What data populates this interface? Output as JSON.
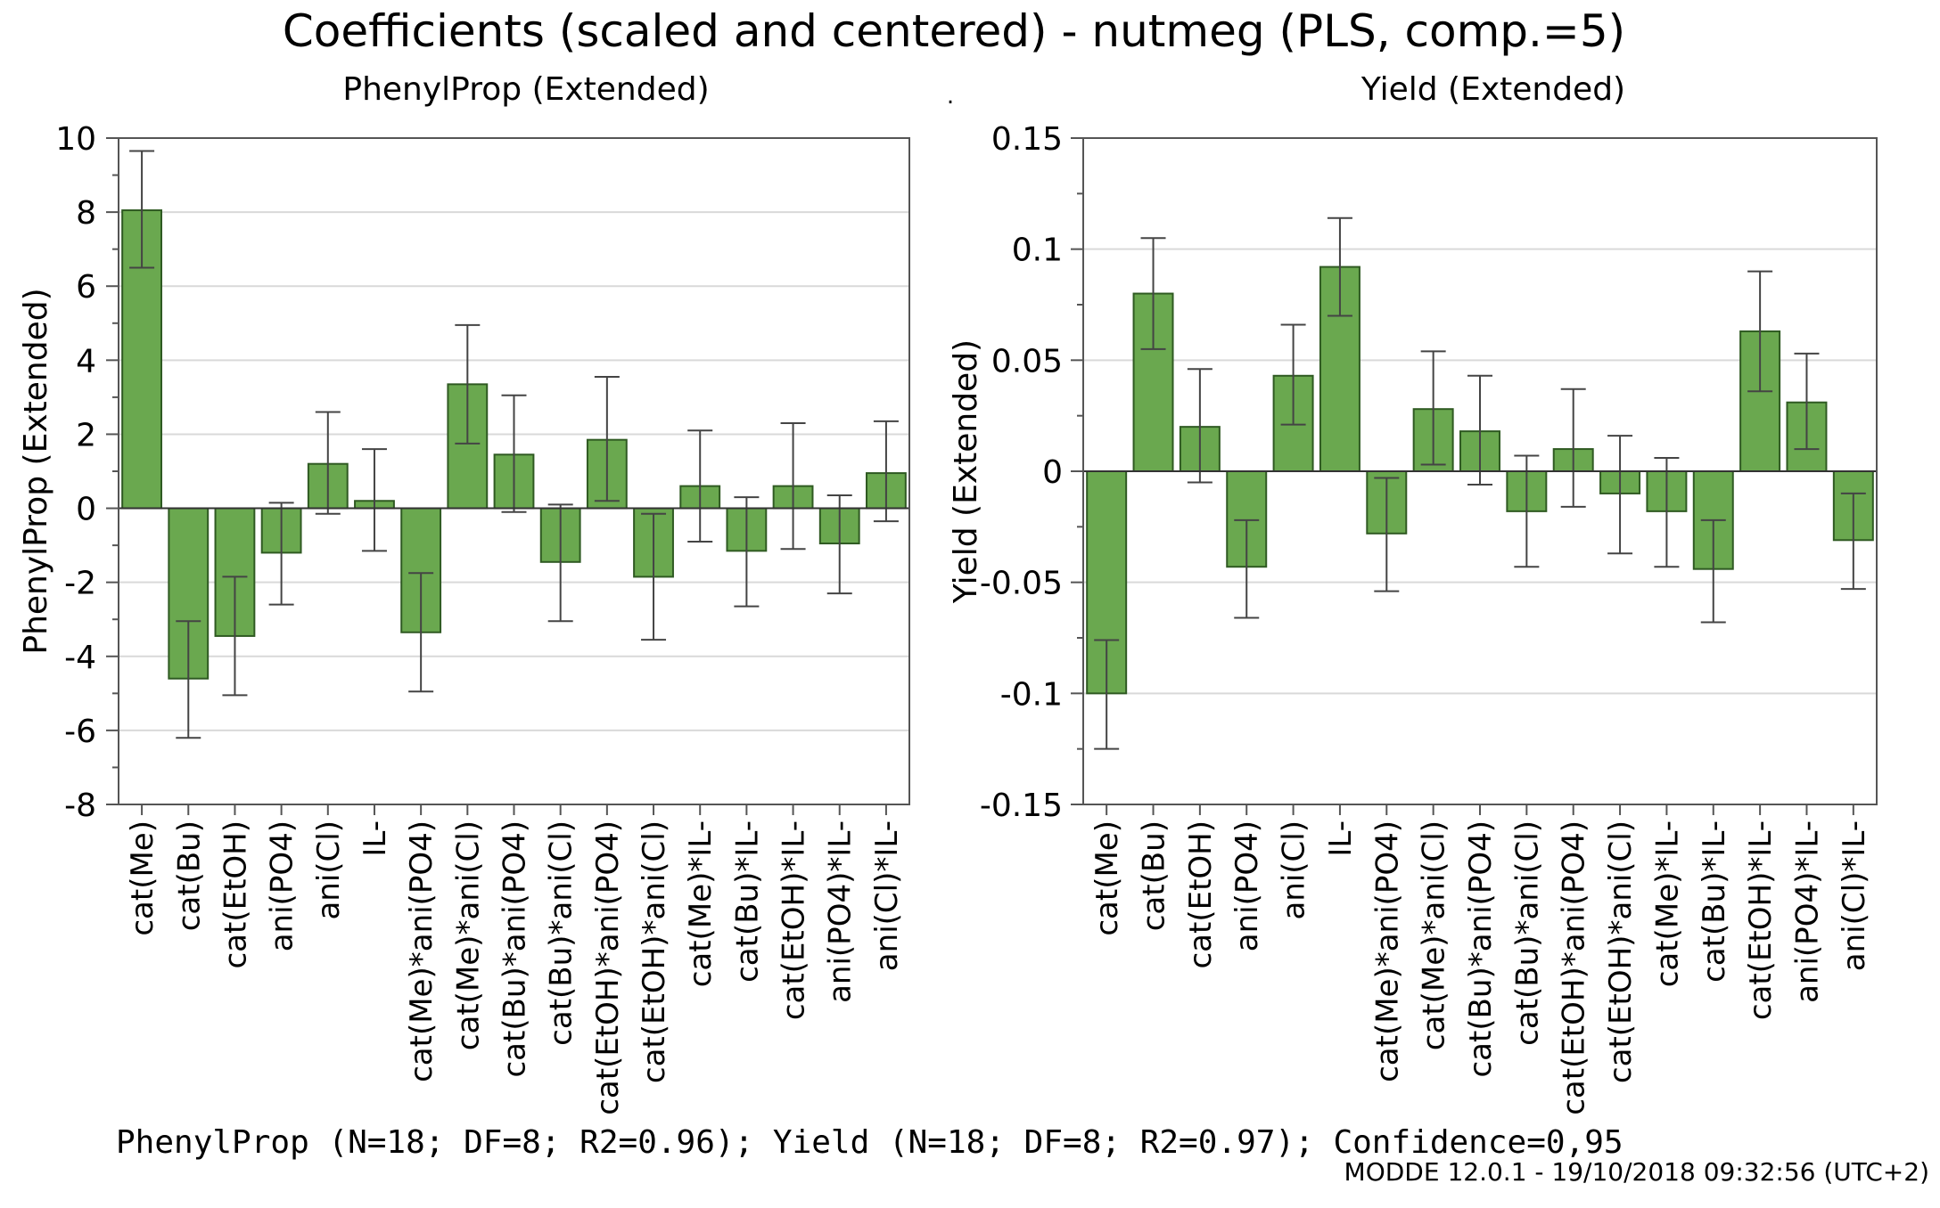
{
  "page": {
    "title": "Coefficients (scaled and centered) - nutmeg (PLS, comp.=5)",
    "footer": "PhenylProp (N=18; DF=8; R2=0.96); Yield (N=18; DF=8; R2=0.97); Confidence=0,95",
    "watermark": "MODDE 12.0.1 - 19/10/2018 09:32:56 (UTC+2)",
    "center_dot": "."
  },
  "colors": {
    "bar_fill": "#6aa84f",
    "bar_stroke": "#2f5a22",
    "grid": "#d9d9d9",
    "axis": "#555555",
    "error_bar": "#444444",
    "watermark": "#9a9a9a"
  },
  "chart_data": [
    {
      "type": "bar",
      "title": "PhenylProp (Extended)",
      "xlabel": "",
      "ylabel": "PhenylProp (Extended)",
      "ylim": [
        -8,
        10
      ],
      "yticks": [
        -8,
        -6,
        -4,
        -2,
        0,
        2,
        4,
        6,
        8,
        10
      ],
      "ytick_labels": [
        "-8",
        "-6",
        "-4",
        "-2",
        "0",
        "2",
        "4",
        "6",
        "8",
        "10"
      ],
      "grid": true,
      "categories": [
        "cat(Me)",
        "cat(Bu)",
        "cat(EtOH)",
        "ani(PO4)",
        "ani(Cl)",
        "IL-",
        "cat(Me)*ani(PO4)",
        "cat(Me)*ani(Cl)",
        "cat(Bu)*ani(PO4)",
        "cat(Bu)*ani(Cl)",
        "cat(EtOH)*ani(PO4)",
        "cat(EtOH)*ani(Cl)",
        "cat(Me)*IL-",
        "cat(Bu)*IL-",
        "cat(EtOH)*IL-",
        "ani(PO4)*IL-",
        "ani(Cl)*IL-"
      ],
      "values": [
        8.05,
        -4.6,
        -3.45,
        -1.2,
        1.2,
        0.2,
        -3.35,
        3.35,
        1.45,
        -1.45,
        1.85,
        -1.85,
        0.6,
        -1.15,
        0.6,
        -0.95,
        0.95
      ],
      "error_low": [
        6.5,
        -6.2,
        -5.05,
        -2.6,
        -0.15,
        -1.15,
        -4.95,
        1.75,
        -0.1,
        -3.05,
        0.2,
        -3.55,
        -0.9,
        -2.65,
        -1.1,
        -2.3,
        -0.35
      ],
      "error_high": [
        9.65,
        -3.05,
        -1.85,
        0.15,
        2.6,
        1.6,
        -1.75,
        4.95,
        3.05,
        0.1,
        3.55,
        -0.15,
        2.1,
        0.3,
        2.3,
        0.35,
        2.35
      ]
    },
    {
      "type": "bar",
      "title": "Yield (Extended)",
      "xlabel": "",
      "ylabel": "Yield (Extended)",
      "ylim": [
        -0.15,
        0.15
      ],
      "yticks": [
        -0.15,
        -0.1,
        -0.05,
        0,
        0.05,
        0.1,
        0.15
      ],
      "ytick_labels": [
        "-0.15",
        "-0.1",
        "-0.05",
        "0",
        "0.05",
        "0.1",
        "0.15"
      ],
      "grid": true,
      "categories": [
        "cat(Me)",
        "cat(Bu)",
        "cat(EtOH)",
        "ani(PO4)",
        "ani(Cl)",
        "IL-",
        "cat(Me)*ani(PO4)",
        "cat(Me)*ani(Cl)",
        "cat(Bu)*ani(PO4)",
        "cat(Bu)*ani(Cl)",
        "cat(EtOH)*ani(PO4)",
        "cat(EtOH)*ani(Cl)",
        "cat(Me)*IL-",
        "cat(Bu)*IL-",
        "cat(EtOH)*IL-",
        "ani(PO4)*IL-",
        "ani(Cl)*IL-"
      ],
      "values": [
        -0.1,
        0.08,
        0.02,
        -0.043,
        0.043,
        0.092,
        -0.028,
        0.028,
        0.018,
        -0.018,
        0.01,
        -0.01,
        -0.018,
        -0.044,
        0.063,
        0.031,
        -0.031
      ],
      "error_low": [
        -0.125,
        0.055,
        -0.005,
        -0.066,
        0.021,
        0.07,
        -0.054,
        0.003,
        -0.006,
        -0.043,
        -0.016,
        -0.037,
        -0.043,
        -0.068,
        0.036,
        0.01,
        -0.053
      ],
      "error_high": [
        -0.076,
        0.105,
        0.046,
        -0.022,
        0.066,
        0.114,
        -0.003,
        0.054,
        0.043,
        0.007,
        0.037,
        0.016,
        0.006,
        -0.022,
        0.09,
        0.053,
        -0.01
      ]
    }
  ]
}
